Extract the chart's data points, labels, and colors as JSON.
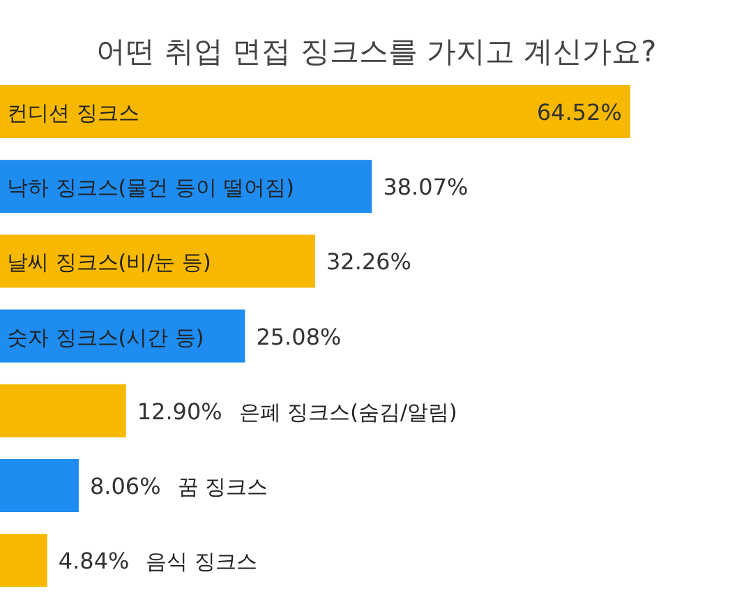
{
  "chart_data": {
    "type": "bar",
    "orientation": "horizontal",
    "title": "어떤 취업 면접 징크스를 가지고 계신가요?",
    "categories": [
      "컨디션 징크스",
      "낙하 징크스(물건 등이 떨어짐)",
      "날씨 징크스(비/눈 등)",
      "숫자 징크스(시간 등)",
      "은폐 징크스(숨김/알림)",
      "꿈 징크스",
      "음식 징크스"
    ],
    "values": [
      64.52,
      38.07,
      32.26,
      25.08,
      12.9,
      8.06,
      4.84
    ],
    "colors": [
      "#f7b900",
      "#1e8cf0",
      "#f7b900",
      "#1e8cf0",
      "#f7b900",
      "#1e8cf0",
      "#f7b900"
    ],
    "value_labels": [
      "64.52%",
      "38.07%",
      "32.26%",
      "25.08%",
      "12.90%",
      "8.06%",
      "4.84%"
    ]
  }
}
